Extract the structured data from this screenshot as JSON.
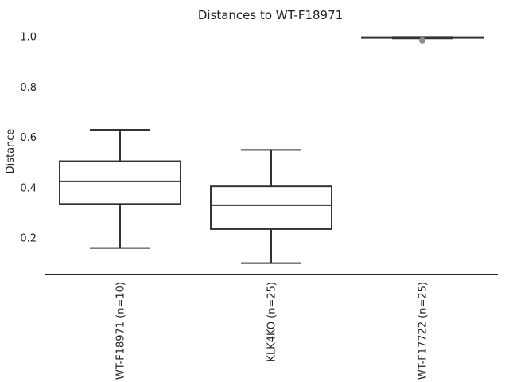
{
  "chart_data": {
    "type": "box",
    "title": "Distances to WT-F18971",
    "ylabel": "Distance",
    "xlabel": "",
    "ylim": [
      0.05,
      1.04
    ],
    "yticks": [
      0.2,
      0.4,
      0.6,
      0.8,
      1.0
    ],
    "ytick_labels": [
      "0.2",
      "0.4",
      "0.6",
      "0.8",
      "1.0"
    ],
    "categories": [
      "WT-F18971 (n=10)",
      "KLK4KO (n=25)",
      "WT-F17722 (n=25)"
    ],
    "boxes": [
      {
        "category": "WT-F18971 (n=10)",
        "whisker_low": 0.16,
        "q1": 0.335,
        "median": 0.425,
        "q3": 0.505,
        "whisker_high": 0.63,
        "outliers": []
      },
      {
        "category": "KLK4KO (n=25)",
        "whisker_low": 0.1,
        "q1": 0.235,
        "median": 0.33,
        "q3": 0.405,
        "whisker_high": 0.55,
        "outliers": []
      },
      {
        "category": "WT-F17722 (n=25)",
        "whisker_low": 0.993,
        "q1": 0.995,
        "median": 0.997,
        "q3": 0.998,
        "whisker_high": 0.999,
        "outliers": [
          0.985
        ]
      }
    ],
    "grid": false,
    "colors": {
      "box_edge": "#333333",
      "box_fill": "#ffffff",
      "outlier": "#8c8c8c"
    }
  }
}
